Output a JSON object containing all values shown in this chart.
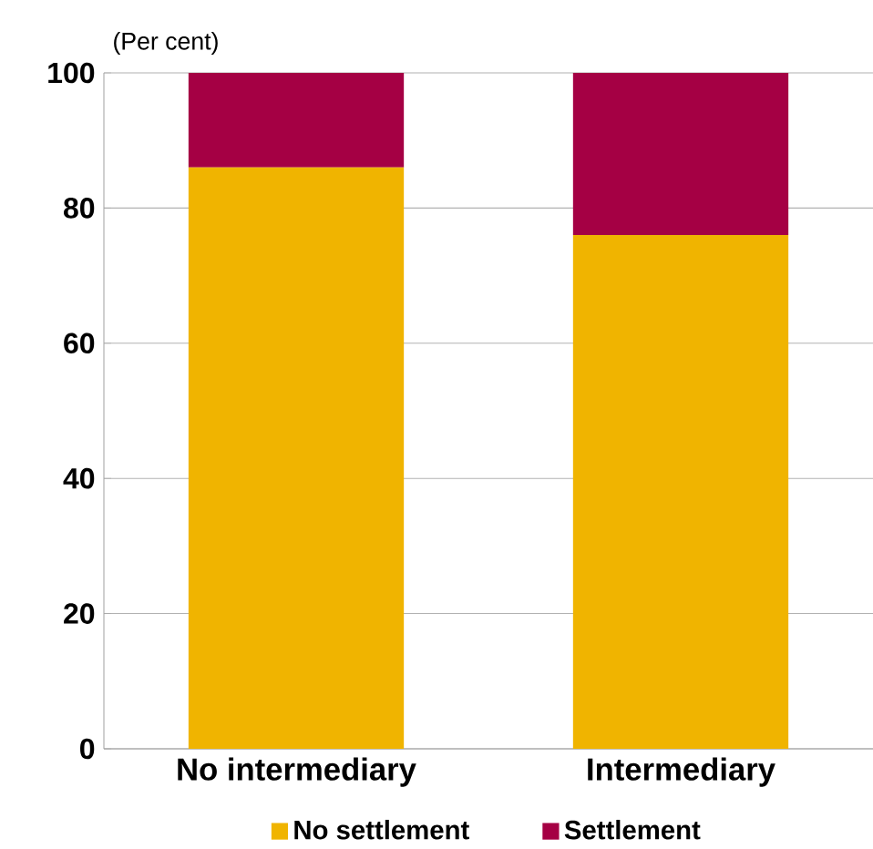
{
  "chart_data": {
    "type": "bar",
    "stacked": true,
    "ylabel": "(Per cent)",
    "categories": [
      "No intermediary",
      "Intermediary"
    ],
    "series": [
      {
        "name": "No settlement",
        "color": "#f0b400",
        "values": [
          86,
          76
        ]
      },
      {
        "name": "Settlement",
        "color": "#a50044",
        "values": [
          14,
          24
        ]
      }
    ],
    "ylim": [
      0,
      100
    ],
    "yticks": [
      0,
      20,
      40,
      60,
      80,
      100
    ],
    "grid": "y",
    "legend": "bottom"
  }
}
